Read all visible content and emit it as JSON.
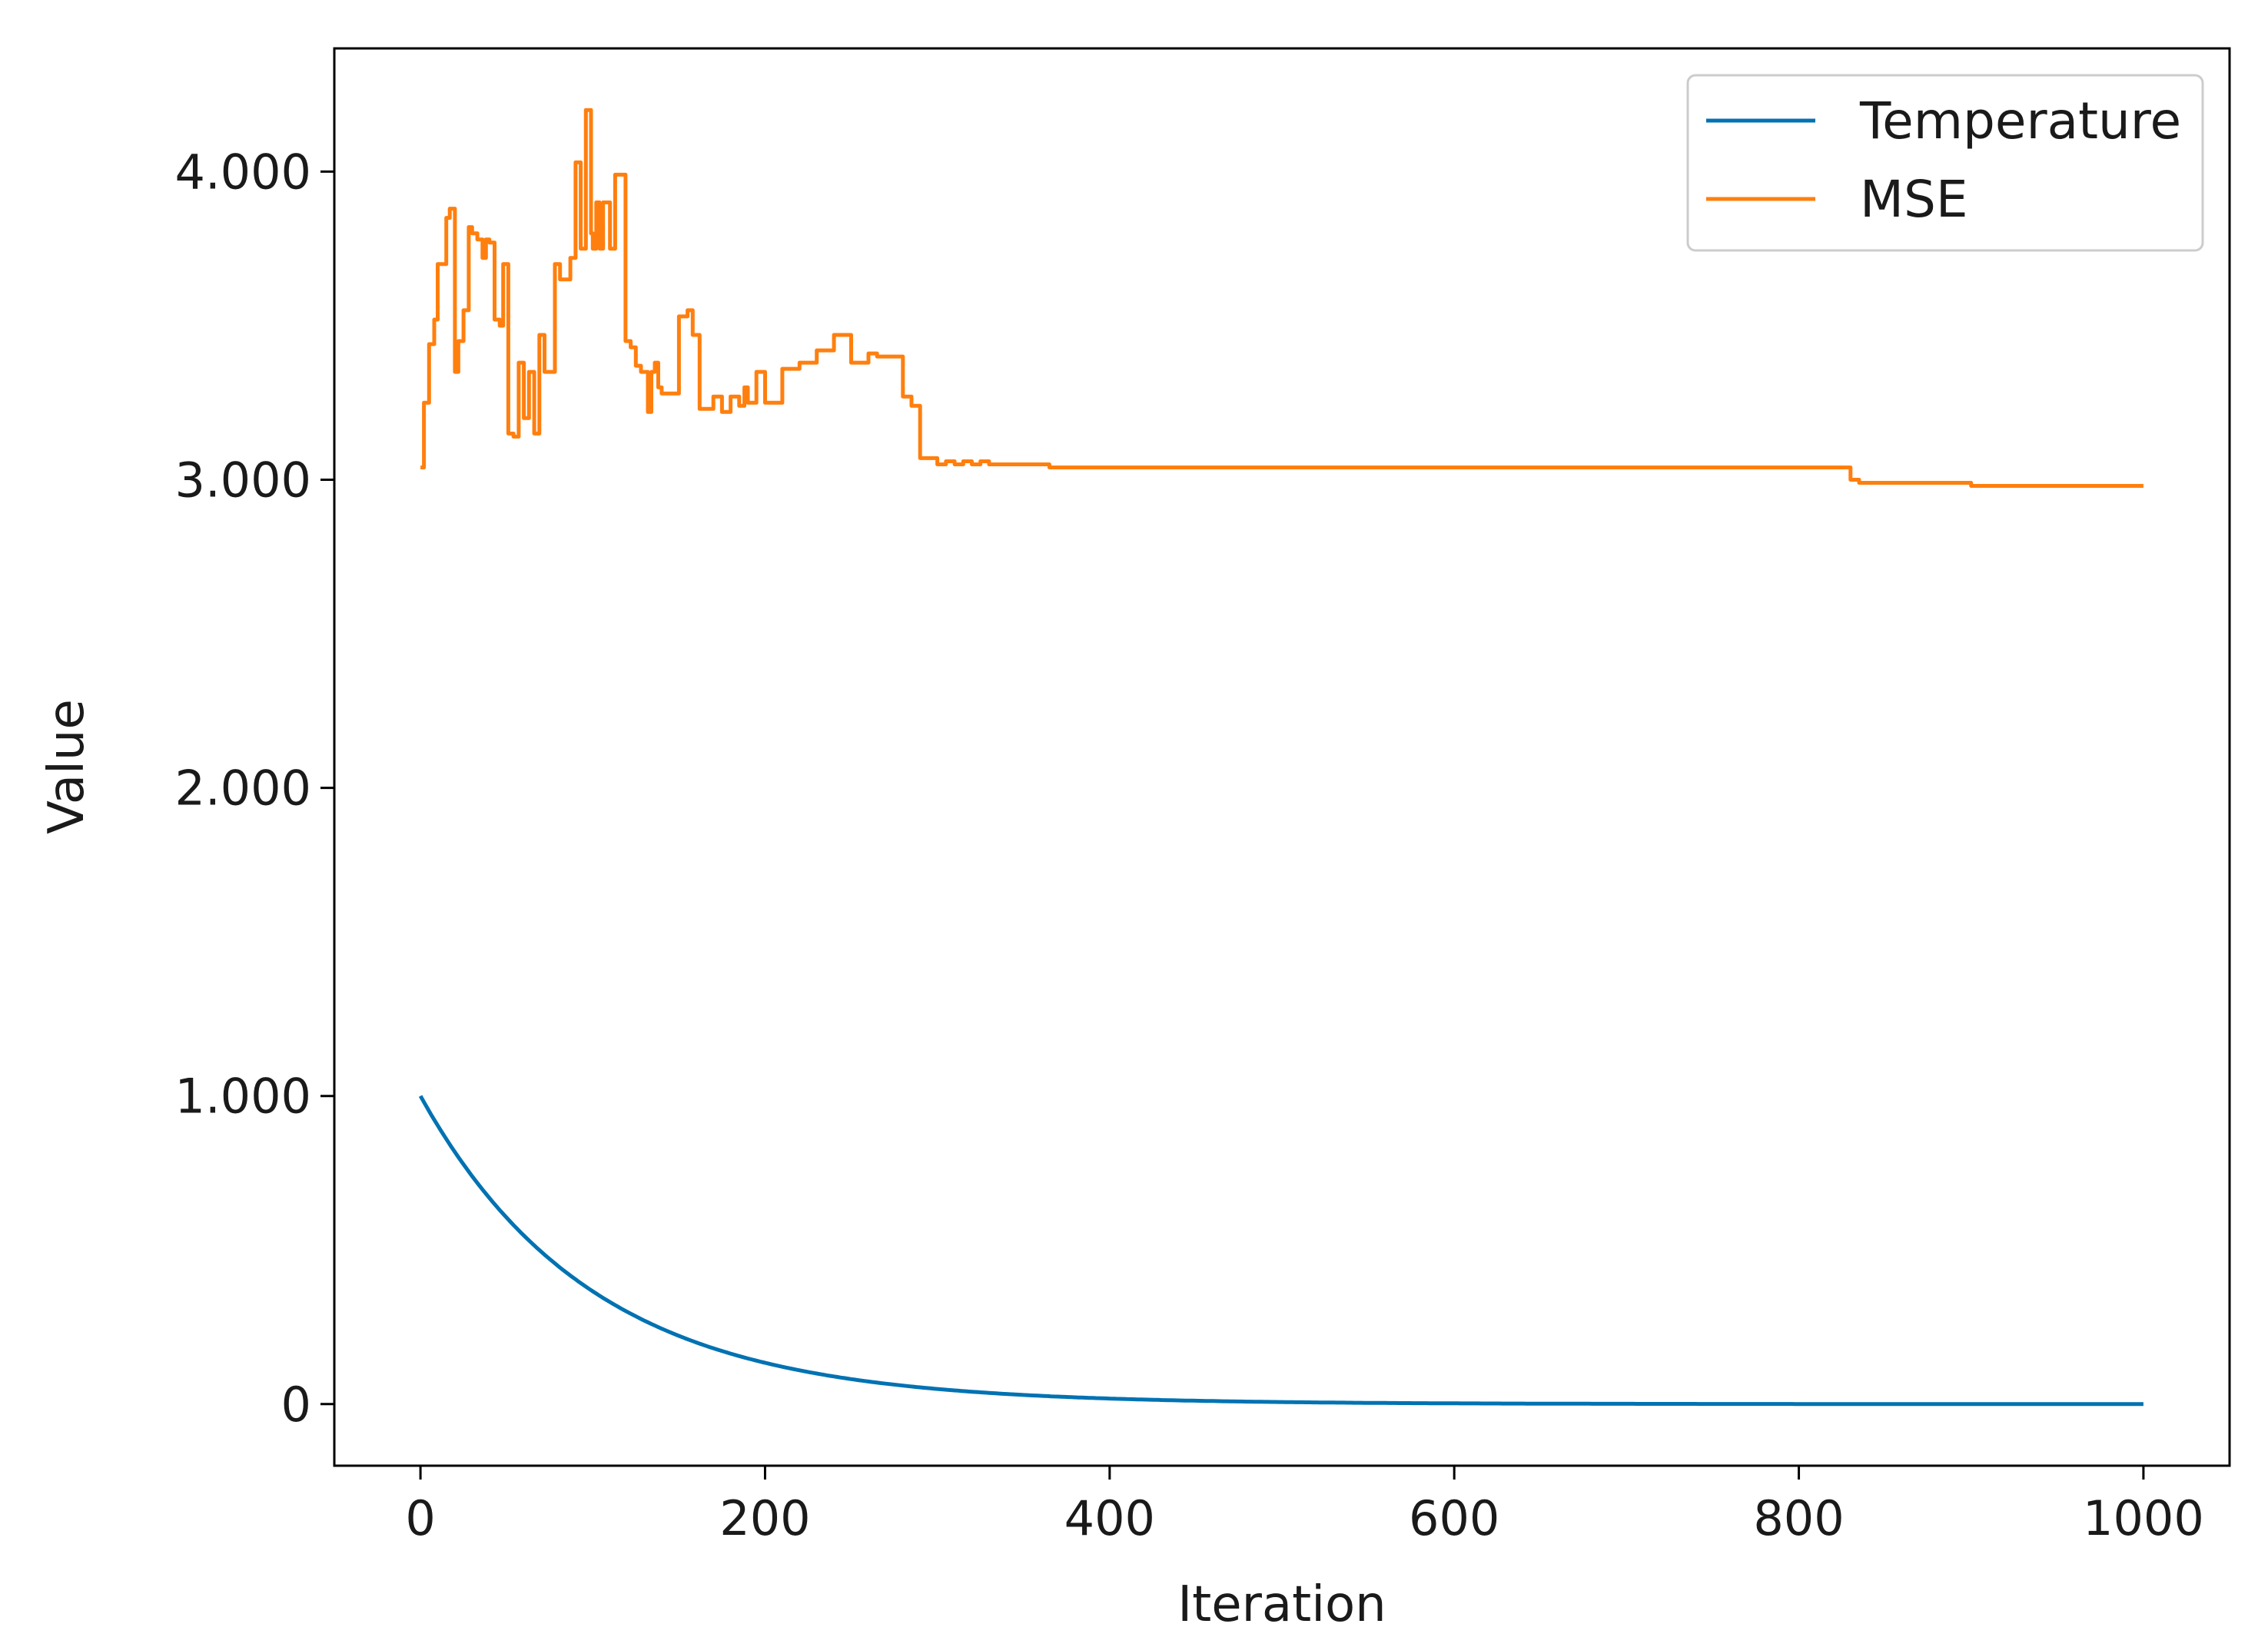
{
  "chart_data": {
    "type": "line",
    "title": "",
    "xlabel": "Iteration",
    "ylabel": "Value",
    "xlim": [
      -50,
      1050
    ],
    "ylim": [
      -0.2,
      4.4
    ],
    "xticks": [
      0,
      200,
      400,
      600,
      800,
      1000
    ],
    "xtick_labels": [
      "0",
      "200",
      "400",
      "600",
      "800",
      "1000"
    ],
    "yticks": [
      0,
      1,
      2,
      3,
      4
    ],
    "ytick_labels": [
      "0",
      "1.000",
      "2.000",
      "3.000",
      "4.000"
    ],
    "grid": false,
    "legend_position": "top-right",
    "series": [
      {
        "name": "Temperature",
        "color": "#0072B2",
        "decay_rate": 0.99,
        "x": [
          0,
          10,
          20,
          30,
          40,
          50,
          60,
          70,
          80,
          90,
          100,
          120,
          140,
          160,
          180,
          200,
          220,
          240,
          260,
          280,
          300,
          330,
          360,
          400,
          450,
          500,
          550,
          600,
          700,
          800,
          900,
          1000
        ],
        "values": [
          1.0,
          0.904,
          0.818,
          0.74,
          0.669,
          0.605,
          0.547,
          0.495,
          0.448,
          0.405,
          0.366,
          0.299,
          0.245,
          0.2,
          0.164,
          0.134,
          0.11,
          0.09,
          0.073,
          0.06,
          0.049,
          0.036,
          0.027,
          0.018,
          0.011,
          0.007,
          0.004,
          0.002,
          0.001,
          0.0,
          0.0,
          0.0
        ]
      },
      {
        "name": "MSE",
        "color": "#FF7F0E",
        "x": [
          0,
          2,
          5,
          8,
          10,
          12,
          15,
          17,
          20,
          22,
          25,
          28,
          30,
          33,
          36,
          38,
          40,
          43,
          46,
          48,
          51,
          54,
          57,
          60,
          63,
          66,
          69,
          72,
          75,
          78,
          81,
          84,
          87,
          90,
          93,
          96,
          99,
          100,
          102,
          104,
          106,
          108,
          110,
          113,
          116,
          119,
          122,
          125,
          128,
          130,
          132,
          134,
          136,
          138,
          140,
          145,
          150,
          155,
          158,
          162,
          166,
          170,
          175,
          180,
          185,
          188,
          190,
          195,
          200,
          210,
          220,
          230,
          240,
          250,
          260,
          265,
          270,
          275,
          280,
          285,
          290,
          295,
          300,
          305,
          310,
          315,
          320,
          325,
          330,
          340,
          350,
          360,
          365,
          370,
          375,
          380,
          390,
          400,
          410,
          420,
          430,
          440,
          450,
          480,
          510,
          540,
          545,
          600,
          700,
          800,
          830,
          835,
          900,
          1000
        ],
        "values": [
          3.04,
          3.25,
          3.44,
          3.52,
          3.7,
          3.7,
          3.85,
          3.88,
          3.35,
          3.45,
          3.55,
          3.82,
          3.8,
          3.78,
          3.72,
          3.78,
          3.77,
          3.52,
          3.5,
          3.7,
          3.15,
          3.14,
          3.38,
          3.2,
          3.35,
          3.15,
          3.47,
          3.35,
          3.35,
          3.7,
          3.65,
          3.65,
          3.72,
          4.03,
          3.75,
          4.2,
          3.8,
          3.75,
          3.9,
          3.75,
          3.9,
          3.9,
          3.75,
          3.99,
          3.99,
          3.45,
          3.43,
          3.37,
          3.35,
          3.35,
          3.22,
          3.35,
          3.38,
          3.3,
          3.28,
          3.28,
          3.53,
          3.55,
          3.47,
          3.23,
          3.23,
          3.27,
          3.22,
          3.27,
          3.24,
          3.3,
          3.25,
          3.35,
          3.25,
          3.36,
          3.38,
          3.42,
          3.47,
          3.38,
          3.41,
          3.4,
          3.4,
          3.4,
          3.27,
          3.24,
          3.07,
          3.07,
          3.05,
          3.06,
          3.05,
          3.06,
          3.05,
          3.06,
          3.05,
          3.05,
          3.05,
          3.05,
          3.04,
          3.04,
          3.04,
          3.04,
          3.04,
          3.04,
          3.04,
          3.04,
          3.04,
          3.04,
          3.04,
          3.04,
          3.04,
          3.04,
          3.04,
          3.04,
          3.04,
          3.04,
          3.0,
          2.99,
          2.98,
          2.98
        ]
      }
    ]
  }
}
